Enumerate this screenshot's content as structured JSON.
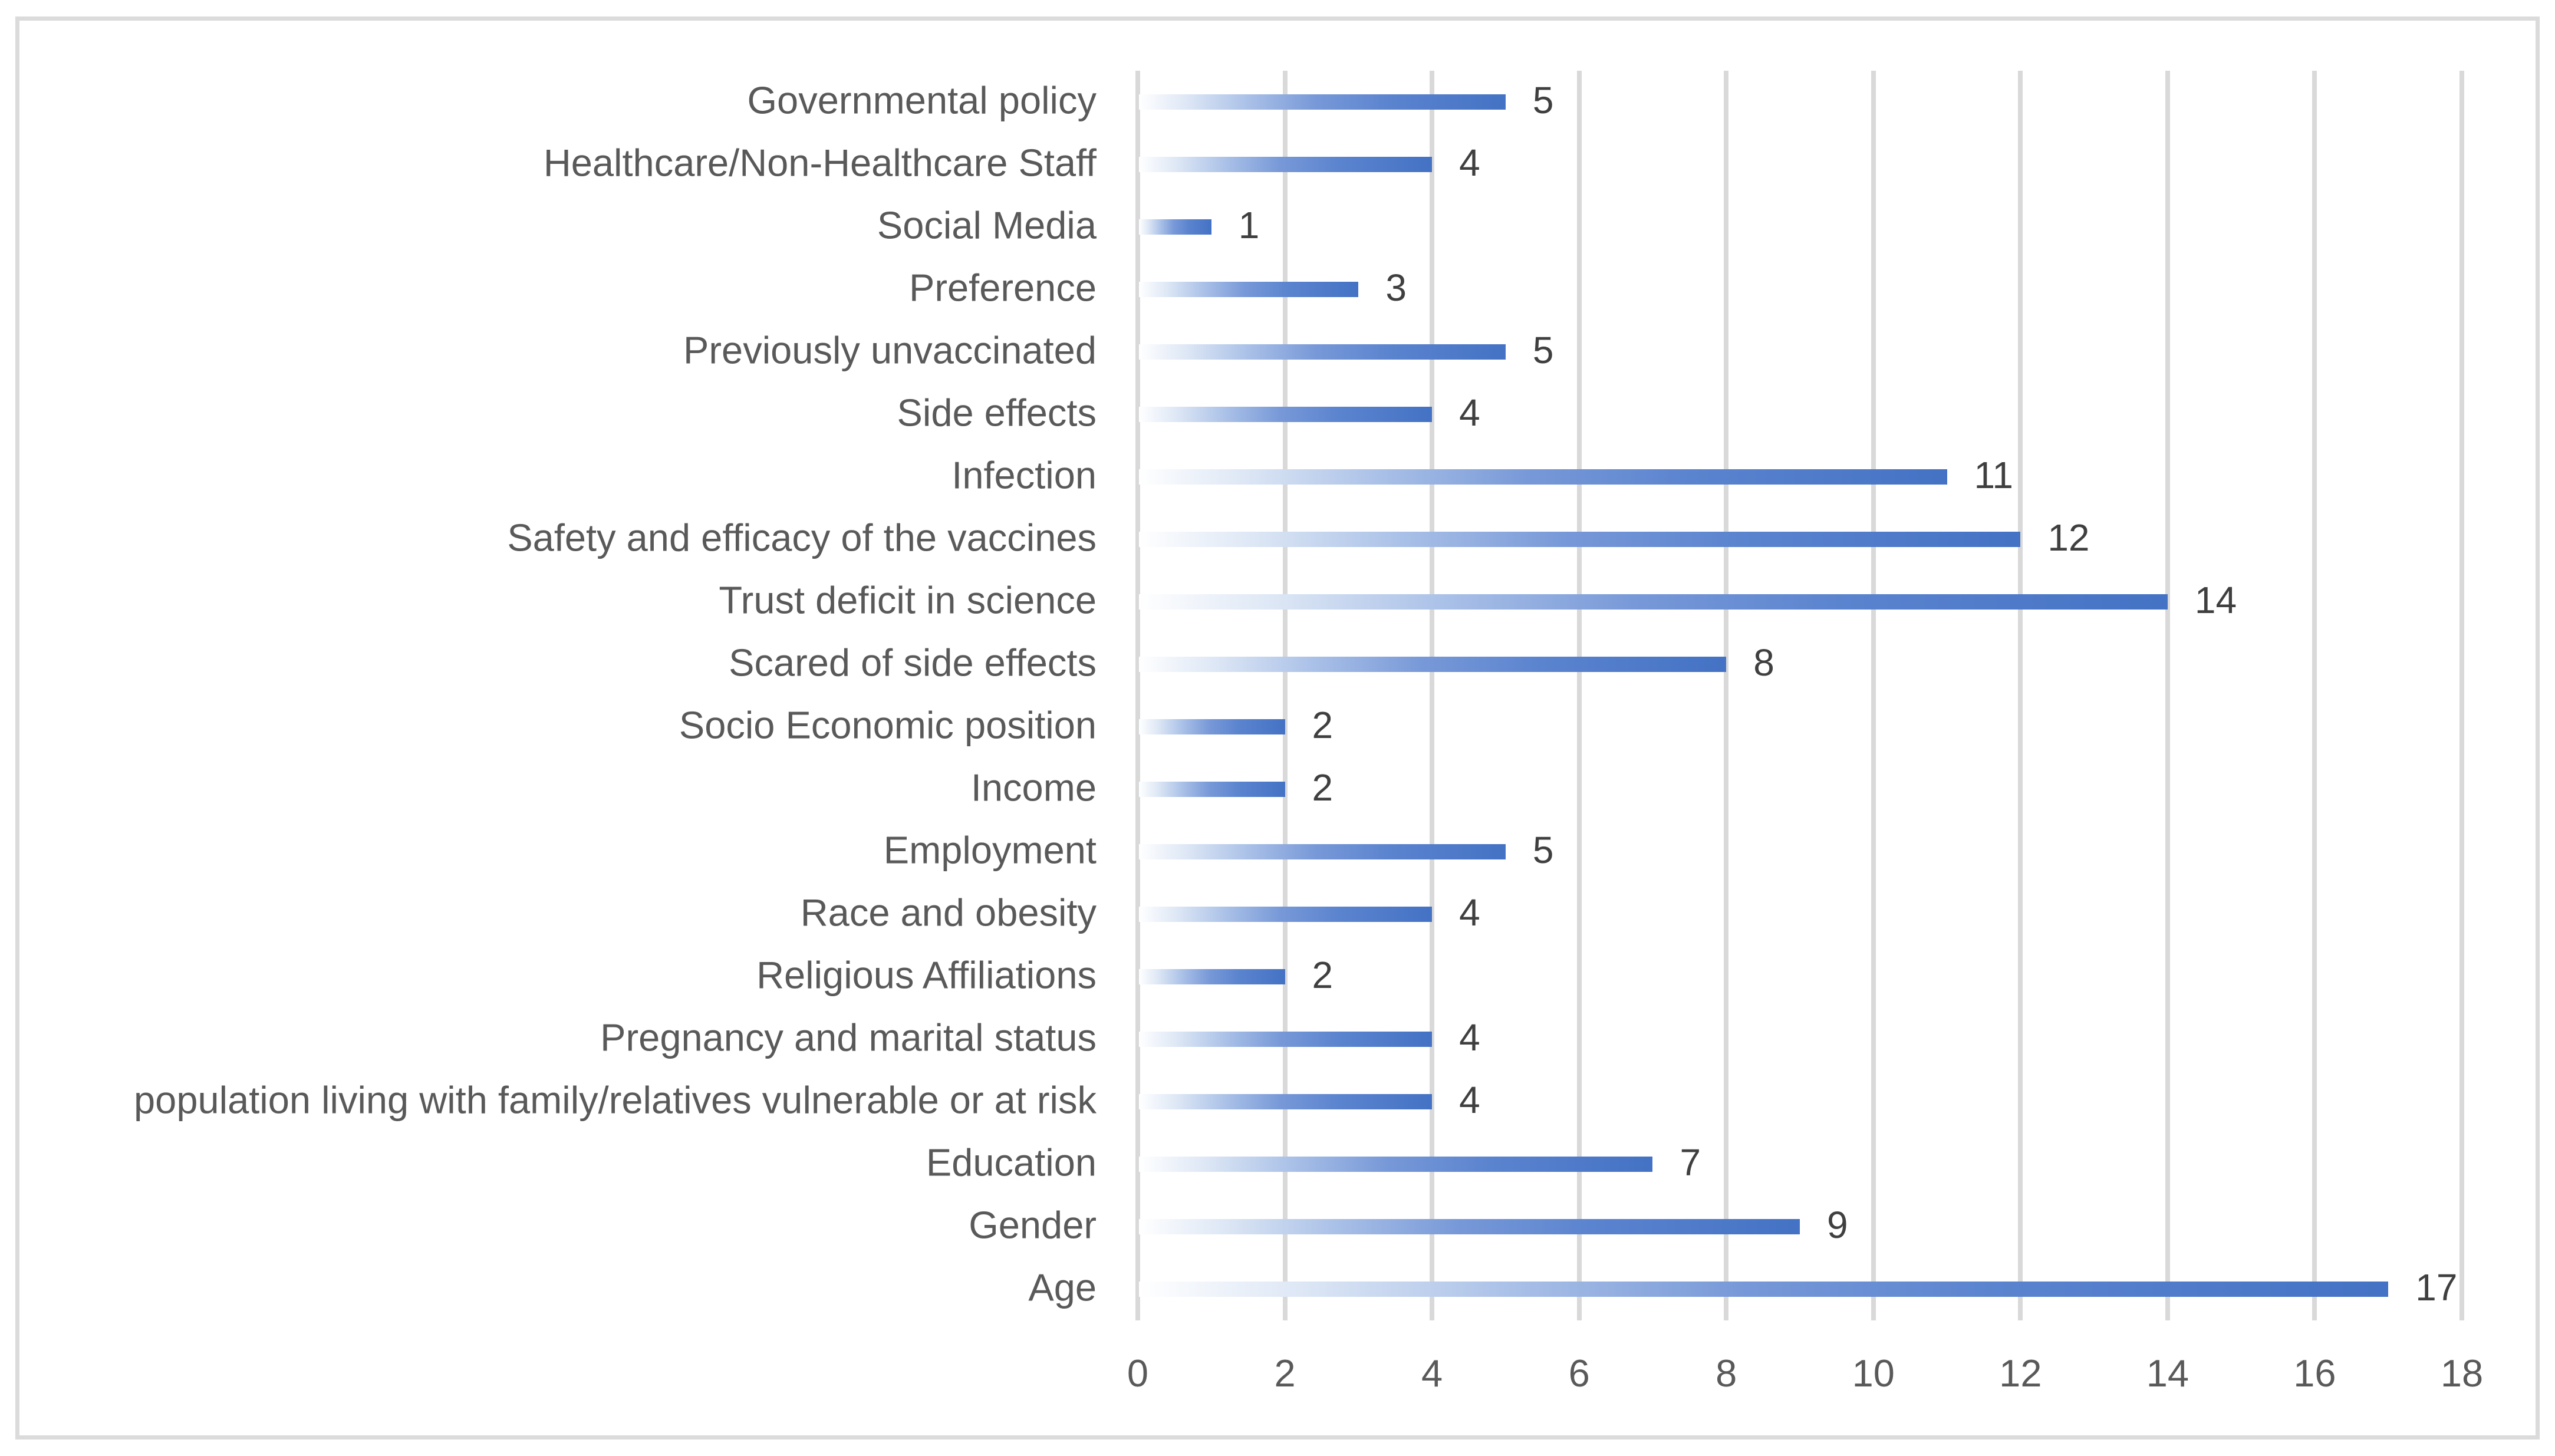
{
  "chart_data": {
    "type": "bar",
    "orientation": "horizontal",
    "title": "",
    "xlabel": "",
    "ylabel": "",
    "categories": [
      "Governmental policy",
      "Healthcare/Non-Healthcare Staff",
      "Social Media",
      "Preference",
      "Previously unvaccinated",
      "Side effects",
      "Infection",
      "Safety and efficacy of the vaccines",
      "Trust deficit in science",
      "Scared of side effects",
      "Socio Economic position",
      "Income",
      "Employment",
      "Race and obesity",
      "Religious Affiliations",
      "Pregnancy and marital status",
      "population living with family/relatives vulnerable or at risk",
      "Education",
      "Gender",
      "Age"
    ],
    "values": [
      5,
      4,
      1,
      3,
      5,
      4,
      11,
      12,
      14,
      8,
      2,
      2,
      5,
      4,
      2,
      4,
      4,
      7,
      9,
      17
    ],
    "data_labels": [
      "5",
      "4",
      "1",
      "3",
      "5",
      "4",
      "11",
      "12",
      "14",
      "8",
      "2",
      "2",
      "5",
      "4",
      "2",
      "4",
      "4",
      "7",
      "9",
      "17"
    ],
    "xlim": [
      0,
      18
    ],
    "x_ticks": [
      0,
      2,
      4,
      6,
      8,
      10,
      12,
      14,
      16,
      18
    ],
    "x_tick_labels": [
      "0",
      "2",
      "4",
      "6",
      "8",
      "10",
      "12",
      "14",
      "16",
      "18"
    ],
    "grid": true,
    "legend": false,
    "colors": {
      "bar_end": "#4472C4",
      "bar_start": "#FFFFFF",
      "gridline": "#D9D9D9",
      "chart_border": "#DBDBDB",
      "category_text": "#595959",
      "value_text": "#3F3F3F",
      "background": "#FFFFFF"
    }
  }
}
